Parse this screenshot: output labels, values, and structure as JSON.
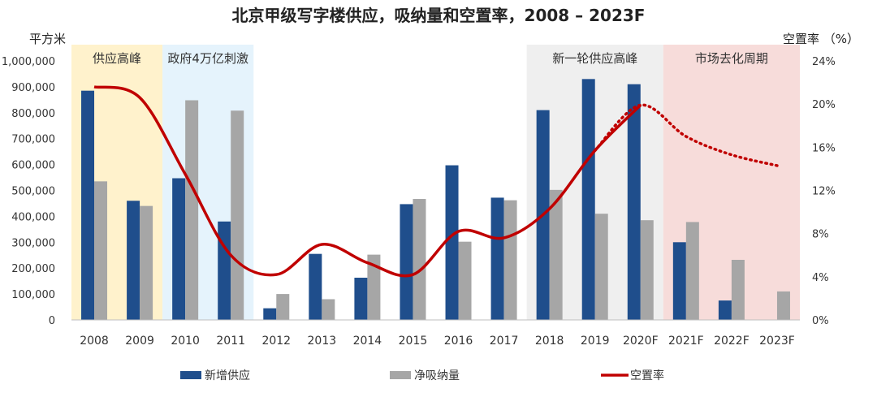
{
  "chart_data": {
    "type": "bar",
    "title": "北京甲级写字楼供应，吸纳量和空置率，2008 – 2023F",
    "ylabel": "平方米",
    "y2label": "空置率 （%）",
    "ylim": [
      0,
      1000000
    ],
    "y2lim": [
      0,
      24
    ],
    "yticks": [
      "1,000,000",
      "900,000",
      "800,000",
      "700,000",
      "600,000",
      "500,000",
      "400,000",
      "300,000",
      "200,000",
      "100,000",
      "0"
    ],
    "y2ticks": [
      "24%",
      "20%",
      "16%",
      "12%",
      "8%",
      "4%",
      "0%"
    ],
    "categories": [
      "2008",
      "2009",
      "2010",
      "2011",
      "2012",
      "2013",
      "2014",
      "2015",
      "2016",
      "2017",
      "2018",
      "2019",
      "2020F",
      "2021F",
      "2022F",
      "2023F"
    ],
    "series": [
      {
        "name": "新增供应",
        "kind": "bar",
        "color": "#1F4E8C",
        "values": [
          885000,
          460000,
          547000,
          380000,
          45000,
          255000,
          163000,
          447000,
          597000,
          472000,
          810000,
          930000,
          910000,
          300000,
          75000,
          0
        ]
      },
      {
        "name": "净吸纳量",
        "kind": "bar",
        "color": "#A6A6A6",
        "values": [
          535000,
          440000,
          848000,
          808000,
          100000,
          80000,
          252000,
          467000,
          302000,
          462000,
          502000,
          410000,
          385000,
          378000,
          232000,
          110000
        ]
      },
      {
        "name": "空置率",
        "kind": "line",
        "color": "#C00000",
        "values": [
          21.6,
          20.6,
          13.5,
          6.0,
          4.2,
          7.0,
          5.3,
          4.2,
          8.2,
          7.6,
          10.3,
          15.7,
          19.9,
          17.0,
          15.3,
          14.3
        ],
        "forecast_from_index": 12
      }
    ],
    "periods": [
      {
        "label": "供应高峰",
        "start": 0,
        "end": 1,
        "color": "#FFF2CC"
      },
      {
        "label": "政府4万亿刺激",
        "start": 2,
        "end": 3,
        "color": "#E5F3FC"
      },
      {
        "label": "新一轮供应高峰",
        "start": 10,
        "end": 12,
        "color": "#EFEFEF"
      },
      {
        "label": "市场去化周期",
        "start": 13,
        "end": 15,
        "color": "#F7DCDA"
      }
    ],
    "legend": "bottom"
  }
}
